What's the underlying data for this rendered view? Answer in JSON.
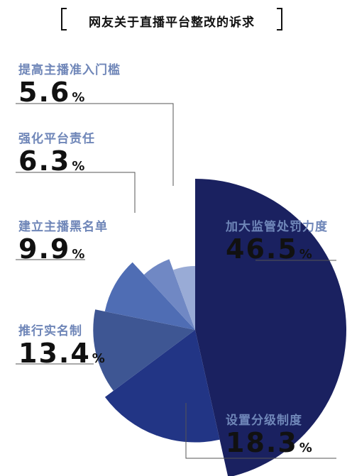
{
  "chart_data": {
    "type": "pie",
    "title": "网友关于直播平台整改的诉求",
    "unit": "%",
    "slices": [
      {
        "label": "加大监管处罚力度",
        "value": 46.5,
        "display": "46.5",
        "color": "#1a2160"
      },
      {
        "label": "设置分级制度",
        "value": 18.3,
        "display": "18.3",
        "color": "#223585"
      },
      {
        "label": "推行实名制",
        "value": 13.4,
        "display": "13.4",
        "color": "#3e5693"
      },
      {
        "label": "建立主播黑名单",
        "value": 9.9,
        "display": "9.9",
        "color": "#4f6db4"
      },
      {
        "label": "强化平台责任",
        "value": 6.3,
        "display": "6.3",
        "color": "#7088c4"
      },
      {
        "label": "提高主播准入门槛",
        "value": 5.6,
        "display": "5.6",
        "color": "#99abd6"
      }
    ],
    "legend": "none"
  }
}
